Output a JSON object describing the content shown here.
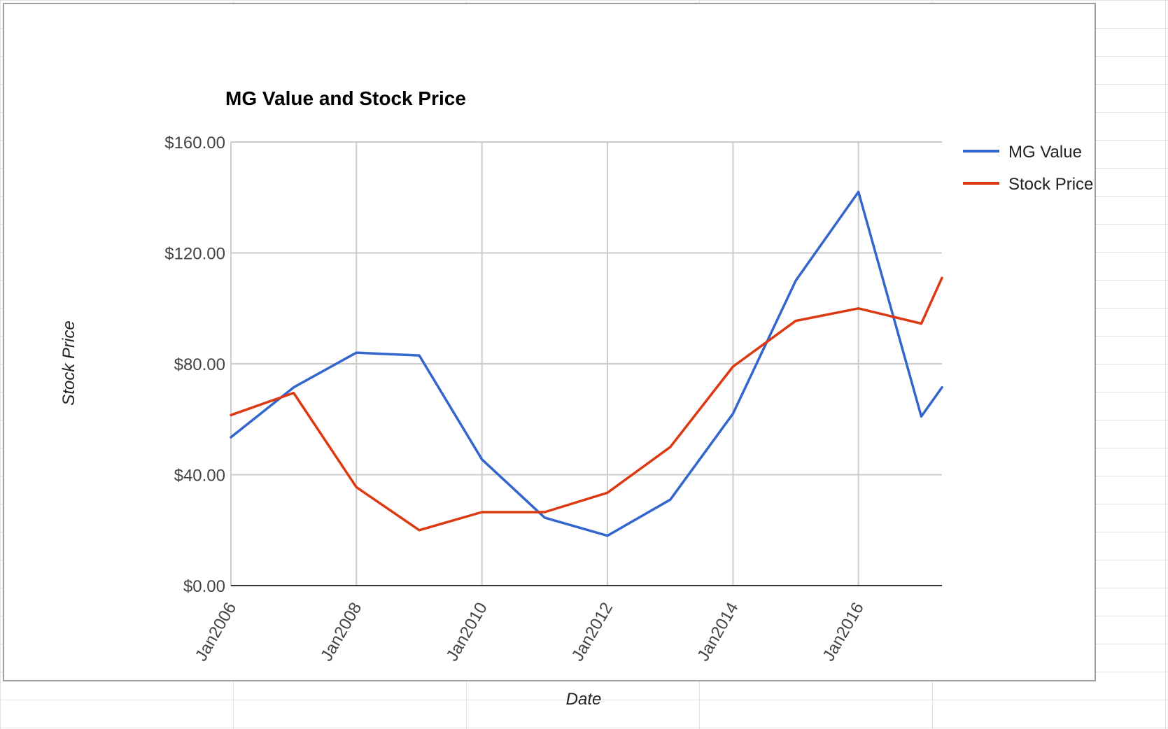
{
  "chart_data": {
    "type": "line",
    "title": "MG Value and Stock Price",
    "xlabel": "Date",
    "ylabel": "Stock Price",
    "x": [
      "2006-01-01",
      "2007-01-01",
      "2008-01-01",
      "2009-01-01",
      "2010-01-01",
      "2011-01-01",
      "2012-01-01",
      "2013-01-01",
      "2014-01-01",
      "2015-01-01",
      "2016-01-01",
      "2017-01-01",
      "2017-05-01"
    ],
    "series": [
      {
        "name": "MG Value",
        "color": "#3366cc",
        "values": [
          53.5,
          71.5,
          84.0,
          83.0,
          45.5,
          24.5,
          18.0,
          31.0,
          62.0,
          110.0,
          142.0,
          61.0,
          71.5
        ]
      },
      {
        "name": "Stock Price",
        "color": "#dc3912",
        "values": [
          61.5,
          69.5,
          35.5,
          20.0,
          26.5,
          26.5,
          33.5,
          50.0,
          79.0,
          95.5,
          100.0,
          94.5,
          111.0
        ]
      }
    ],
    "ylim": [
      0,
      160
    ],
    "yticks": [
      0,
      40,
      80,
      120,
      160
    ],
    "ytick_labels": [
      "$0.00",
      "$40.00",
      "$80.00",
      "$120.00",
      "$160.00"
    ],
    "xticks": [
      "2006-01-01",
      "2008-01-01",
      "2010-01-01",
      "2012-01-01",
      "2014-01-01",
      "2016-01-01"
    ],
    "xtick_labels": [
      "Jan2006",
      "Jan2008",
      "Jan2010",
      "Jan2012",
      "Jan2014",
      "Jan2016"
    ],
    "xlim": [
      "2006-01-01",
      "2017-05-01"
    ],
    "grid": true,
    "legend_position": "right"
  }
}
